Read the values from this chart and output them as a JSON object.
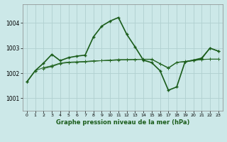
{
  "title": "Graphe pression niveau de la mer (hPa)",
  "bg_color": "#cce8e8",
  "grid_color_major": "#b0d0d0",
  "grid_color_minor": "#c8e0e0",
  "lc_dark": "#1a5c1a",
  "lc_med": "#2a6a2a",
  "xlim": [
    -0.5,
    23.5
  ],
  "ylim": [
    1000.5,
    1004.75
  ],
  "yticks": [
    1001,
    1002,
    1003,
    1004
  ],
  "xticks": [
    0,
    1,
    2,
    3,
    4,
    5,
    6,
    7,
    8,
    9,
    10,
    11,
    12,
    13,
    14,
    15,
    16,
    17,
    18,
    19,
    20,
    21,
    22,
    23
  ],
  "main_x": [
    0,
    1,
    2,
    3,
    4,
    5,
    6,
    7,
    8,
    9,
    10,
    11,
    12,
    13,
    14,
    15,
    16,
    17,
    18,
    19,
    20,
    21,
    22,
    23
  ],
  "main_y": [
    1001.65,
    1002.1,
    1002.4,
    1002.75,
    1002.5,
    1002.62,
    1002.68,
    1002.72,
    1003.45,
    1003.88,
    1004.08,
    1004.22,
    1003.55,
    1003.05,
    1002.52,
    1002.42,
    1002.1,
    1001.32,
    1001.45,
    1002.45,
    1002.52,
    1002.6,
    1003.0,
    1002.88
  ],
  "s2_x": [
    0,
    1,
    2,
    3,
    4,
    5,
    6,
    7,
    8,
    9,
    10,
    11,
    12,
    13,
    14,
    15,
    16,
    17,
    18,
    19,
    20,
    21,
    22,
    23
  ],
  "s2_y": [
    1001.65,
    1002.1,
    1002.22,
    1002.28,
    1002.4,
    1002.44,
    1002.45,
    1002.47,
    1002.49,
    1002.5,
    1002.52,
    1002.54,
    1002.54,
    1002.55,
    1002.55,
    1002.55,
    1002.38,
    1002.2,
    1002.42,
    1002.46,
    1002.5,
    1002.55,
    1002.56,
    1002.56
  ],
  "s3_x": [
    2,
    3,
    4,
    5,
    6,
    7,
    8,
    9,
    10,
    11,
    12,
    13,
    14,
    15,
    16,
    17,
    18,
    19,
    20,
    21,
    22,
    23
  ],
  "s3_y": [
    1002.22,
    1002.3,
    1002.4,
    1002.44,
    1002.45,
    1002.46,
    1002.49,
    1002.5,
    1002.52,
    1002.54,
    1002.54,
    1002.55,
    1002.56,
    1002.56,
    1002.38,
    1002.22,
    1002.43,
    1002.47,
    1002.52,
    1002.56,
    1003.0,
    1002.88
  ],
  "s4_x": [
    2,
    3,
    4,
    5,
    6,
    7,
    8,
    9,
    10,
    11,
    12,
    13,
    14,
    15,
    16,
    17,
    18,
    19,
    20,
    21,
    22,
    23
  ],
  "s4_y": [
    1002.18,
    1002.26,
    1002.38,
    1002.42,
    1002.43,
    1002.45,
    1002.47,
    1002.5,
    1002.5,
    1002.52,
    1002.53,
    1002.54,
    1002.55,
    1002.55,
    1002.38,
    1002.2,
    1002.44,
    1002.46,
    1002.5,
    1002.54,
    1002.56,
    1002.56
  ]
}
